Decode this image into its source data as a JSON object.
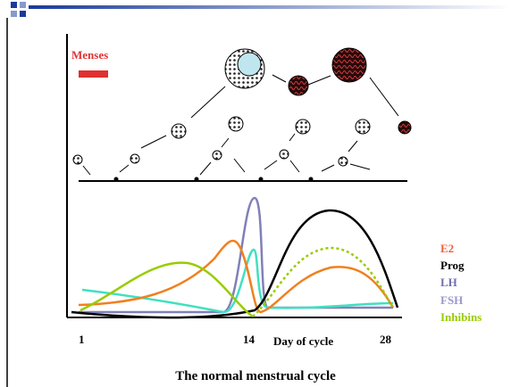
{
  "slide": {
    "menses_label": "Menses",
    "legend": [
      "E2",
      "Prog",
      "LH",
      "FSH",
      "Inhibins"
    ],
    "x_axis": {
      "ticks": [
        "1",
        "14",
        "28"
      ],
      "label": "Day of cycle"
    },
    "caption": "The normal menstrual cycle"
  }
}
